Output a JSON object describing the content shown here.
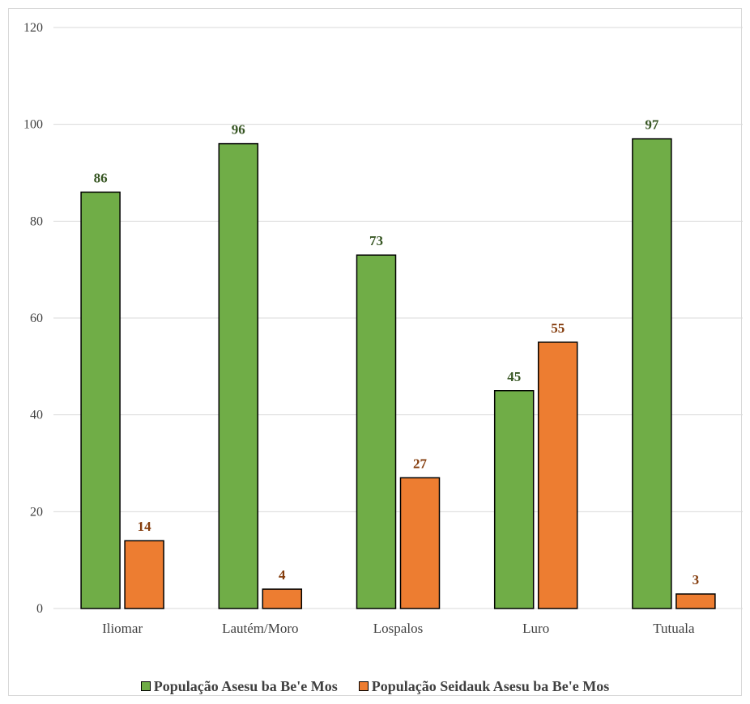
{
  "chart_data": {
    "type": "bar",
    "categories": [
      "Iliomar",
      "Lautém/Moro",
      "Lospalos",
      "Luro",
      "Tutuala"
    ],
    "series": [
      {
        "name": "População Asesu ba Be'e Mos",
        "values": [
          86,
          96,
          73,
          45,
          97
        ],
        "color": "#70ad47",
        "label_color": "#375623"
      },
      {
        "name": "População Seidauk Asesu ba Be'e Mos",
        "values": [
          14,
          4,
          27,
          55,
          3
        ],
        "color": "#ed7d31",
        "label_color": "#843c0c"
      }
    ],
    "ylim": [
      0,
      120
    ],
    "yticks": [
      0,
      20,
      40,
      60,
      80,
      100,
      120
    ],
    "grid": true,
    "legend_position": "bottom",
    "title": "",
    "xlabel": "",
    "ylabel": ""
  }
}
